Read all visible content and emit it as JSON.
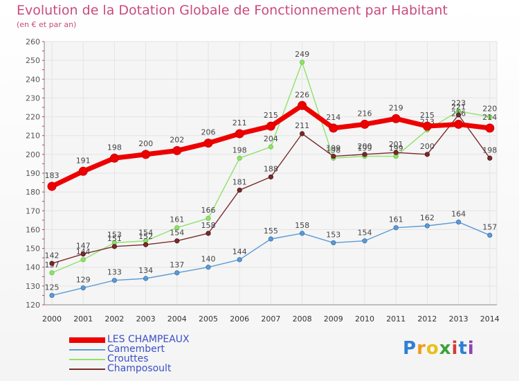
{
  "chart_data": {
    "type": "line",
    "title": "Evolution de la Dotation Globale de Fonctionnement par Habitant",
    "subtitle": "(en € et par an)",
    "xlabel": "",
    "ylabel": "",
    "x": [
      "2000",
      "2001",
      "2002",
      "2003",
      "2004",
      "2005",
      "2006",
      "2007",
      "2008",
      "2009",
      "2010",
      "2011",
      "2012",
      "2013",
      "2014"
    ],
    "ylim": [
      120,
      260
    ],
    "yticks": [
      120,
      130,
      140,
      150,
      160,
      170,
      180,
      190,
      200,
      210,
      220,
      230,
      240,
      250,
      260
    ],
    "grid": true,
    "series": [
      {
        "name": "LES CHAMPEAUX",
        "color": "#ee0000",
        "values": [
          183,
          191,
          198,
          200,
          202,
          206,
          211,
          215,
          226,
          214,
          216,
          219,
          215,
          216,
          214
        ]
      },
      {
        "name": "Camembert",
        "color": "#5b9bd5",
        "values": [
          125,
          129,
          133,
          134,
          137,
          140,
          144,
          155,
          158,
          153,
          154,
          161,
          162,
          164,
          157
        ]
      },
      {
        "name": "Crouttes",
        "color": "#8ee26a",
        "values": [
          137,
          144,
          153,
          154,
          161,
          166,
          198,
          204,
          249,
          198,
          199,
          199,
          213,
          223,
          220
        ]
      },
      {
        "name": "Champosoult",
        "color": "#7a2a2a",
        "values": [
          142,
          147,
          151,
          152,
          154,
          158,
          181,
          188,
          211,
          199,
          200,
          201,
          200,
          221,
          198
        ]
      }
    ]
  },
  "legend": {
    "items": [
      {
        "label": "LES CHAMPEAUX",
        "color": "#ee0000"
      },
      {
        "label": "Camembert",
        "color": "#5b9bd5"
      },
      {
        "label": "Crouttes",
        "color": "#8ee26a"
      },
      {
        "label": "Champosoult",
        "color": "#7a2a2a"
      }
    ]
  },
  "logo": {
    "letters": [
      "P",
      "r",
      "o",
      "x",
      "i",
      "t",
      "i"
    ],
    "colors": [
      "#2f7fd6",
      "#f29a1a",
      "#e8c11a",
      "#3aa33a",
      "#d63a3a",
      "#2f7fd6",
      "#8e44ad"
    ]
  }
}
